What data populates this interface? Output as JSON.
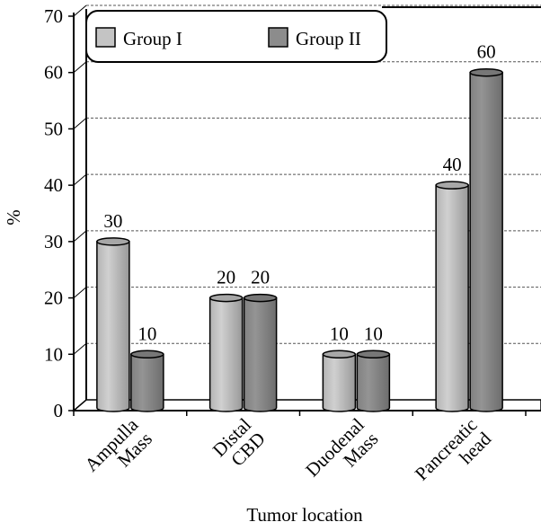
{
  "chart_data": {
    "type": "bar",
    "title": "",
    "xlabel": "Tumor location",
    "ylabel": "%",
    "ylim": [
      0,
      70
    ],
    "yticks": [
      0,
      10,
      20,
      30,
      40,
      50,
      60,
      70
    ],
    "grid": true,
    "legend_position": "top-left",
    "categories": [
      [
        "Ampulla",
        "Mass"
      ],
      [
        "Distal",
        "CBD"
      ],
      [
        "Duodenal",
        "Mass"
      ],
      [
        "Pancreatic",
        "head"
      ]
    ],
    "series": [
      {
        "name": "Group I",
        "values": [
          30,
          20,
          10,
          40
        ],
        "color": "#c4c4c4"
      },
      {
        "name": "Group II",
        "values": [
          10,
          20,
          10,
          60
        ],
        "color": "#8c8c8c"
      }
    ]
  }
}
